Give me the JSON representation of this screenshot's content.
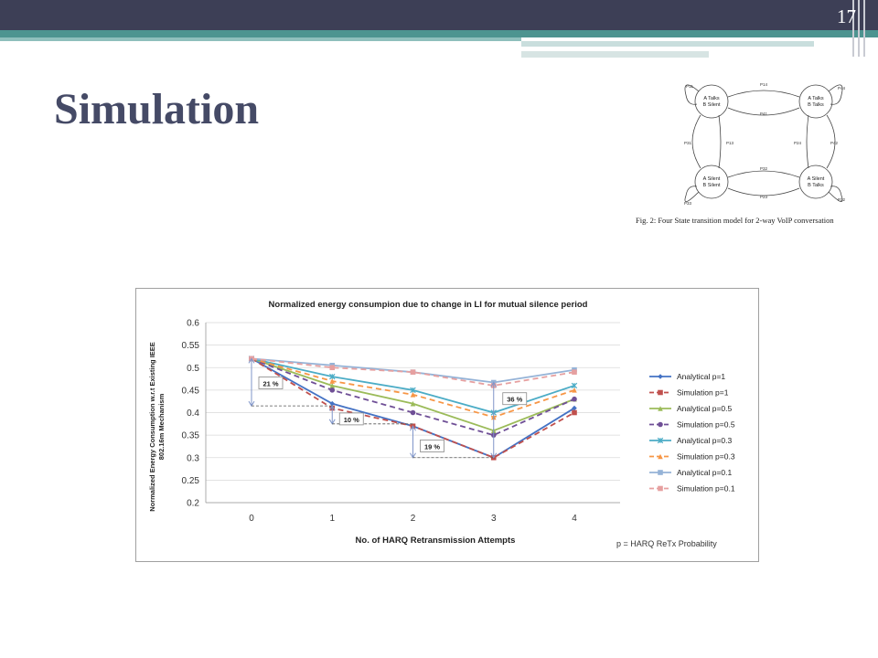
{
  "slide": {
    "number": "17",
    "title": "Simulation"
  },
  "figure": {
    "caption": "Fig. 2: Four State transition model for 2-way VoIP conversation",
    "states": [
      {
        "id": "s1",
        "lines": [
          "A Talks",
          "B Silent"
        ]
      },
      {
        "id": "s2",
        "lines": [
          "A Talks",
          "B Talks"
        ]
      },
      {
        "id": "s3",
        "lines": [
          "A Silent",
          "B Silent"
        ]
      },
      {
        "id": "s4",
        "lines": [
          "A Silent",
          "B Talks"
        ]
      }
    ],
    "labels": [
      "P11",
      "P14",
      "P44",
      "P41",
      "P31",
      "P13",
      "P24",
      "P42",
      "P32",
      "P23",
      "P33",
      "P22"
    ]
  },
  "colors": {
    "topbar": "#3d3f56",
    "accent": "#4d9490",
    "title": "#454a66",
    "p1": "#4472c4",
    "p1_sim": "#c0504d",
    "p05": "#9bbb59",
    "p05_sim": "#6f4f96",
    "p03": "#4bacc6",
    "p03_sim": "#f79646",
    "p01": "#95b3d7",
    "p01_sim": "#e6a0a0"
  },
  "chart_data": {
    "type": "line",
    "title": "Normalized energy consumpion due to change in LI for mutual silence period",
    "xlabel": "No. of HARQ Retransmission Attempts",
    "ylabel_lines": [
      "Normalized Energy Consumption w.r.t Existing IEEE",
      "802.16m Mechanism"
    ],
    "x": [
      0,
      1,
      2,
      3,
      4
    ],
    "x_ticks": [
      "0",
      "1",
      "2",
      "3",
      "4"
    ],
    "ylim": [
      0.2,
      0.6
    ],
    "y_ticks": [
      "0.2",
      "0.25",
      "0.3",
      "0.35",
      "0.4",
      "0.45",
      "0.5",
      "0.55",
      "0.6"
    ],
    "legend_position": "right",
    "legend_note": "p = HARQ ReTx Probability",
    "series": [
      {
        "name": "Analytical p=1",
        "values": [
          0.52,
          0.42,
          0.37,
          0.3,
          0.41
        ],
        "color": "#4472c4",
        "dash": false,
        "marker": "diamond"
      },
      {
        "name": "Simulation p=1",
        "values": [
          0.52,
          0.41,
          0.37,
          0.3,
          0.4
        ],
        "color": "#c0504d",
        "dash": true,
        "marker": "square"
      },
      {
        "name": "Analytical p=0.5",
        "values": [
          0.52,
          0.46,
          0.42,
          0.36,
          0.43
        ],
        "color": "#9bbb59",
        "dash": false,
        "marker": "triangle"
      },
      {
        "name": "Simulation p=0.5",
        "values": [
          0.52,
          0.45,
          0.4,
          0.35,
          0.43
        ],
        "color": "#6f4f96",
        "dash": true,
        "marker": "circle"
      },
      {
        "name": "Analytical p=0.3",
        "values": [
          0.52,
          0.48,
          0.45,
          0.4,
          0.46
        ],
        "color": "#4bacc6",
        "dash": false,
        "marker": "star"
      },
      {
        "name": "Simulation p=0.3",
        "values": [
          0.52,
          0.47,
          0.44,
          0.39,
          0.45
        ],
        "color": "#f79646",
        "dash": true,
        "marker": "triangle"
      },
      {
        "name": "Analytical p=0.1",
        "values": [
          0.52,
          0.505,
          0.49,
          0.467,
          0.495
        ],
        "color": "#95b3d7",
        "dash": false,
        "marker": "square"
      },
      {
        "name": "Simulation p=0.1",
        "values": [
          0.52,
          0.5,
          0.49,
          0.46,
          0.49
        ],
        "color": "#e6a0a0",
        "dash": true,
        "marker": "square"
      }
    ],
    "annotations": [
      {
        "text": "21 %",
        "x": 0,
        "y_from": 0.415,
        "y_to": 0.52,
        "label_y": 0.465
      },
      {
        "text": "10 %",
        "x": 1,
        "y_from": 0.375,
        "y_to": 0.415,
        "label_y": 0.385
      },
      {
        "text": "19 %",
        "x": 2,
        "y_from": 0.3,
        "y_to": 0.37,
        "label_y": 0.325
      },
      {
        "text": "36 %",
        "x": 3,
        "y_from": 0.3,
        "y_to": 0.467,
        "label_y": 0.43
      }
    ]
  }
}
